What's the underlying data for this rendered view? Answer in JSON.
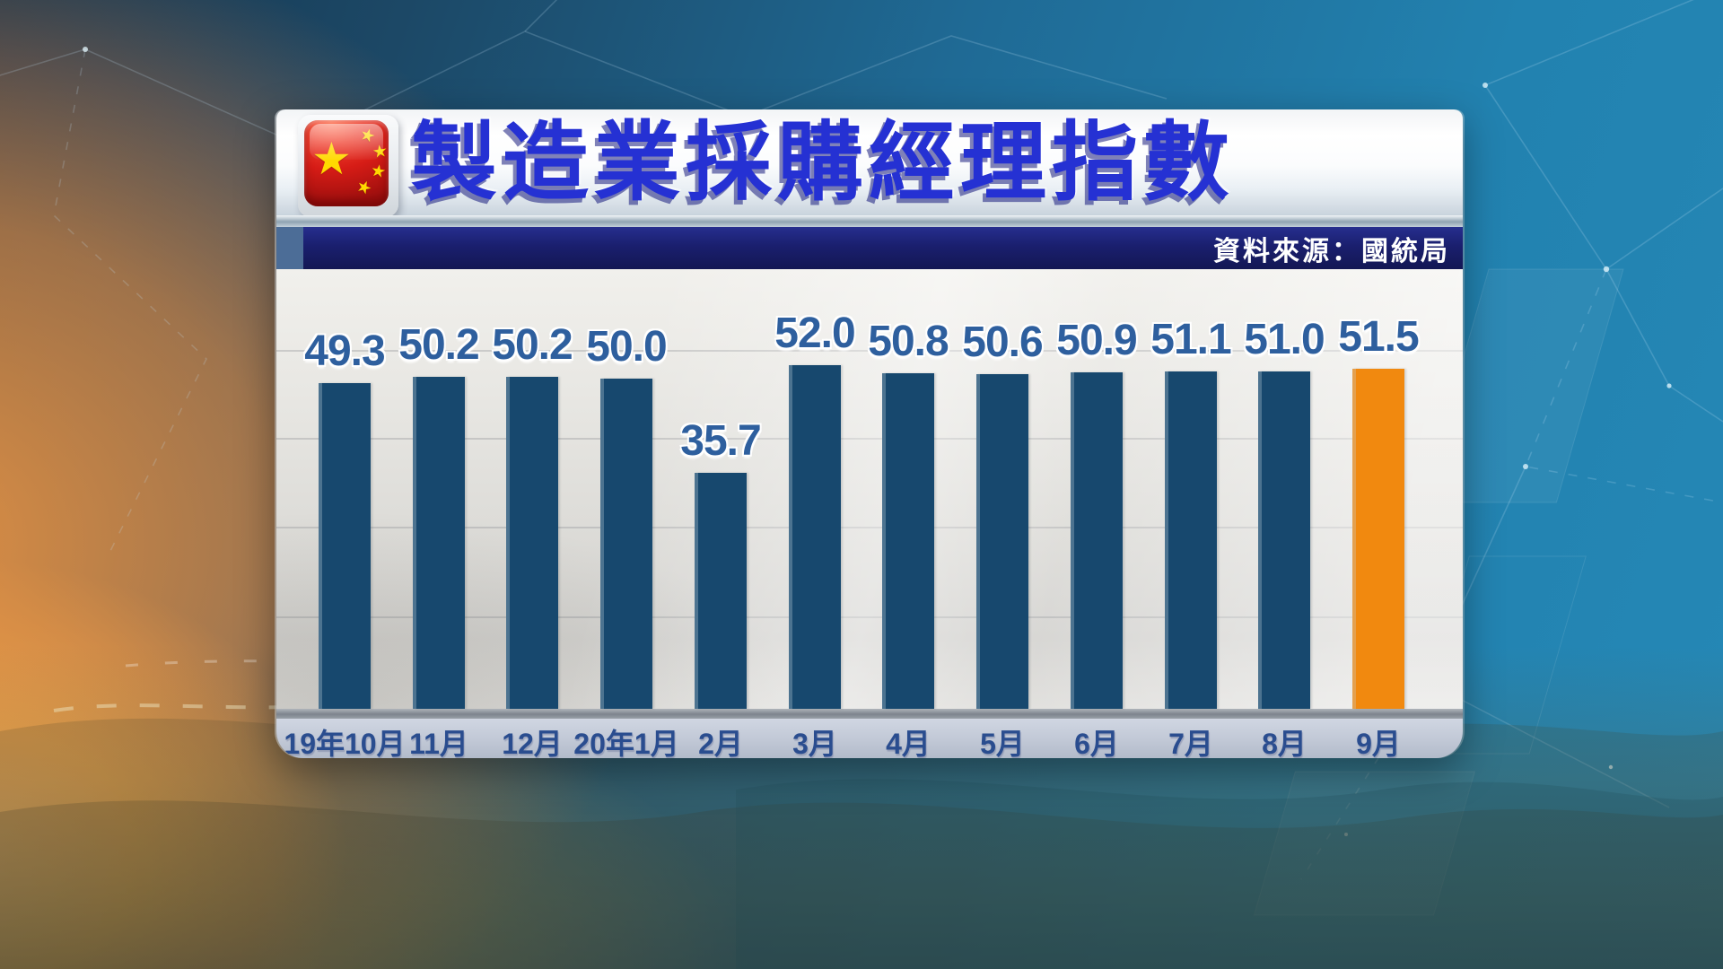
{
  "header": {
    "title": "製造業採購經理指數",
    "flag_icon": "china-flag-icon"
  },
  "source": {
    "label": "資料來源：國統局"
  },
  "chart_data": {
    "type": "bar",
    "title": "製造業採購經理指數",
    "source_note": "資料來源：國統局",
    "categories": [
      "19年10月",
      "11月",
      "12月",
      "20年1月",
      "2月",
      "3月",
      "4月",
      "5月",
      "6月",
      "7月",
      "8月",
      "9月"
    ],
    "values": [
      49.3,
      50.2,
      50.2,
      50.0,
      35.7,
      52.0,
      50.8,
      50.6,
      50.9,
      51.1,
      51.0,
      51.5
    ],
    "highlight_index": 11,
    "ylim": [
      0,
      55
    ],
    "grid": true,
    "legend_position": "none",
    "colors": {
      "bar": "#17486e",
      "highlight": "#f1890f",
      "value_label": "#2e5f9e",
      "category_label": "#2a4d8f",
      "source_bar": "#1a1f6e",
      "title_blue": "#2531d3"
    }
  }
}
